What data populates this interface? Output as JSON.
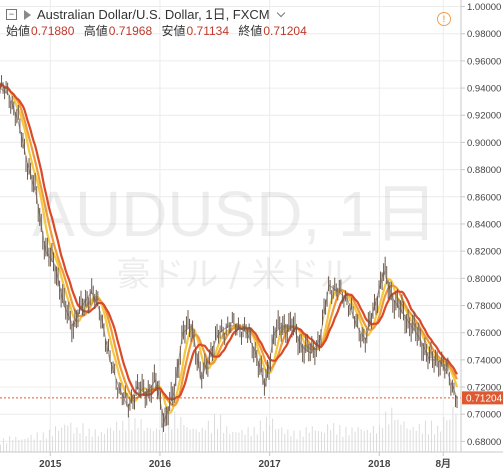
{
  "header": {
    "title": "Australian Dollar/U.S. Dollar, 1日, FXCM",
    "ohlc": [
      {
        "label": "始値",
        "value": "0.71880"
      },
      {
        "label": "高値",
        "value": "0.71968"
      },
      {
        "label": "安値",
        "value": "0.71134"
      },
      {
        "label": "終値",
        "value": "0.71204"
      }
    ],
    "alert_glyph": "!"
  },
  "watermark": {
    "symbol": "AUDUSD, 1日",
    "name": "豪ドル / 米ドル"
  },
  "colors": {
    "price_line": "#6b5a4e",
    "ma_fast": "#f5c842",
    "ma_mid": "#f09a3a",
    "ma_slow": "#d84a2a",
    "last_price_badge": "#e0582f",
    "volume": "#dcdcdc",
    "grid": "#ececec"
  },
  "chart_data": {
    "type": "line",
    "title": "Australian Dollar/U.S. Dollar, 1日, FXCM",
    "xlabel": "",
    "ylabel": "",
    "x_ticks": [
      "2015",
      "2016",
      "2017",
      "2018",
      "8月"
    ],
    "y_ticks": [
      "1.00000",
      "0.98000",
      "0.96000",
      "0.94000",
      "0.92000",
      "0.90000",
      "0.88000",
      "0.86000",
      "0.84000",
      "0.82000",
      "0.80000",
      "0.78000",
      "0.76000",
      "0.74000",
      "0.72000",
      "0.70000",
      "0.68000"
    ],
    "ylim": [
      0.6722,
      1.0048
    ],
    "grid": true,
    "last_price": "0.71204",
    "series": [
      {
        "role": "price",
        "x": [
          "2014-06",
          "2014-07",
          "2014-08",
          "2014-09",
          "2014-10",
          "2014-11",
          "2014-12",
          "2015-01",
          "2015-02",
          "2015-03",
          "2015-04",
          "2015-05",
          "2015-06",
          "2015-07",
          "2015-08",
          "2015-09",
          "2015-10",
          "2015-11",
          "2015-12",
          "2016-01",
          "2016-02",
          "2016-03",
          "2016-04",
          "2016-05",
          "2016-06",
          "2016-07",
          "2016-08",
          "2016-09",
          "2016-10",
          "2016-11",
          "2016-12",
          "2017-01",
          "2017-02",
          "2017-03",
          "2017-04",
          "2017-05",
          "2017-06",
          "2017-07",
          "2017-08",
          "2017-09",
          "2017-10",
          "2017-11",
          "2017-12",
          "2018-01",
          "2018-02",
          "2018-03",
          "2018-04",
          "2018-05",
          "2018-06",
          "2018-07",
          "2018-08",
          "2018-09"
        ],
        "values": [
          0.935,
          0.94,
          0.935,
          0.915,
          0.885,
          0.86,
          0.82,
          0.81,
          0.78,
          0.765,
          0.78,
          0.79,
          0.775,
          0.74,
          0.72,
          0.705,
          0.72,
          0.715,
          0.725,
          0.695,
          0.715,
          0.76,
          0.765,
          0.725,
          0.745,
          0.76,
          0.765,
          0.765,
          0.76,
          0.745,
          0.72,
          0.76,
          0.765,
          0.765,
          0.75,
          0.745,
          0.755,
          0.795,
          0.79,
          0.785,
          0.765,
          0.755,
          0.78,
          0.805,
          0.785,
          0.775,
          0.765,
          0.755,
          0.74,
          0.74,
          0.73,
          0.712
        ]
      },
      {
        "role": "ma-fast"
      },
      {
        "role": "ma-mid"
      },
      {
        "role": "ma-slow"
      }
    ],
    "volume": [
      0.15,
      0.18,
      0.16,
      0.2,
      0.22,
      0.25,
      0.3,
      0.35,
      0.28,
      0.32,
      0.26,
      0.24,
      0.3,
      0.35,
      0.4,
      0.38,
      0.3,
      0.28,
      0.33,
      0.45,
      0.4,
      0.3,
      0.28,
      0.35,
      0.42,
      0.3,
      0.25,
      0.26,
      0.28,
      0.35,
      0.4,
      0.3,
      0.26,
      0.24,
      0.28,
      0.3,
      0.26,
      0.33,
      0.3,
      0.28,
      0.3,
      0.27,
      0.3,
      0.45,
      0.5,
      0.38,
      0.3,
      0.32,
      0.35,
      0.3,
      0.42,
      0.55
    ]
  }
}
